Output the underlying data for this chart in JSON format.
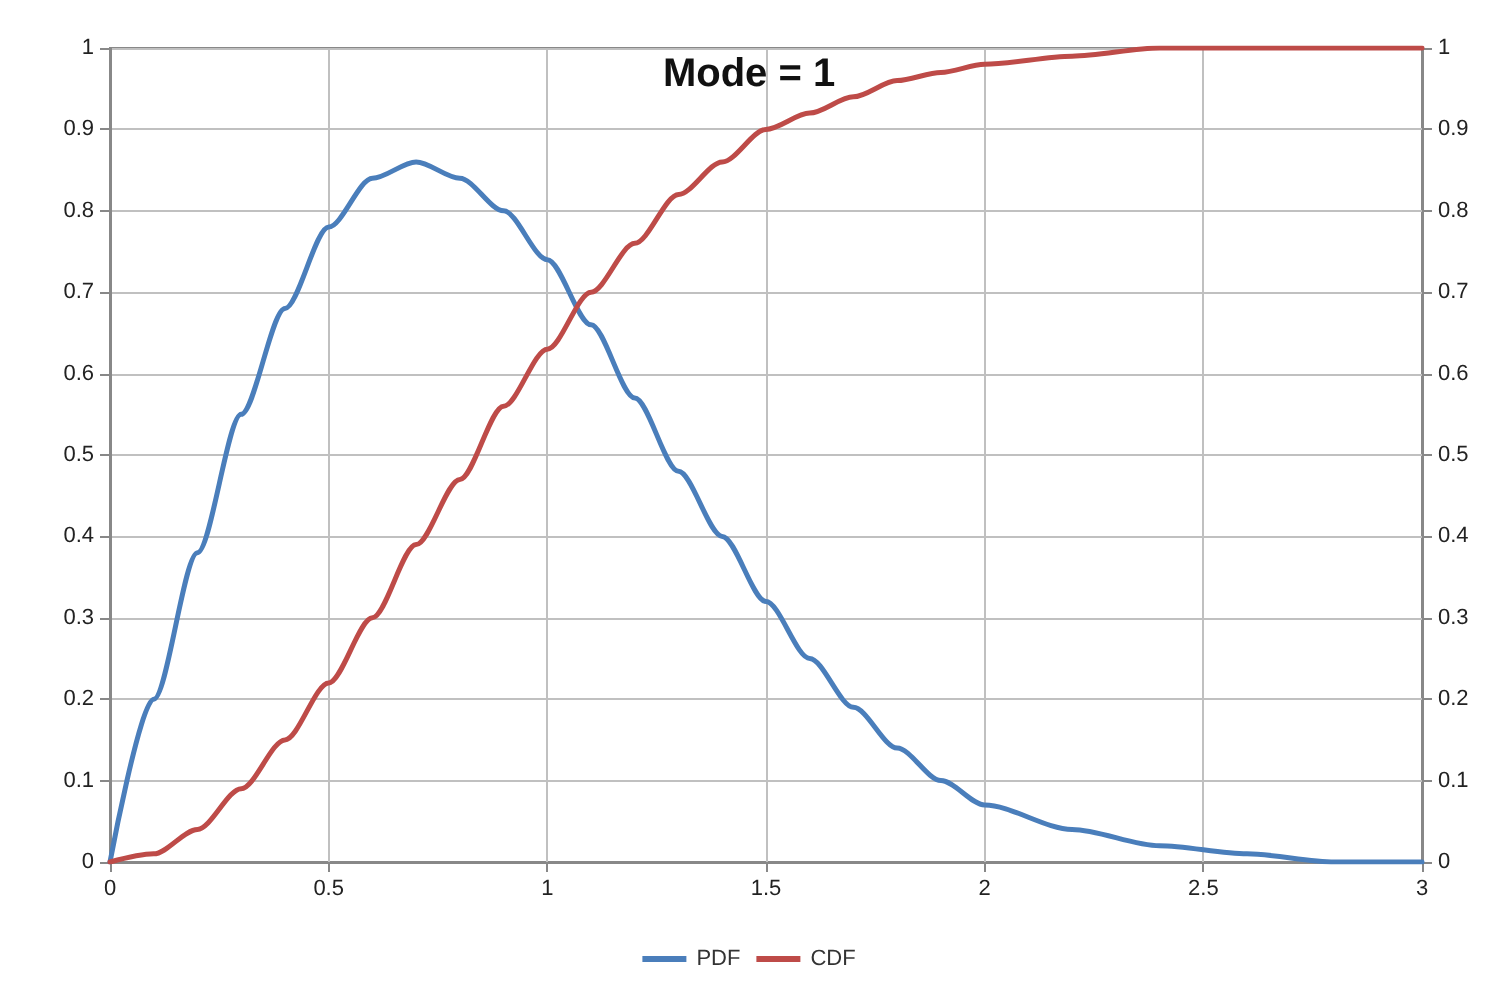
{
  "chart_data": {
    "type": "line",
    "title": "Mode = 1",
    "x": [
      0,
      0.1,
      0.2,
      0.3,
      0.4,
      0.5,
      0.6,
      0.7,
      0.8,
      0.9,
      1.0,
      1.1,
      1.2,
      1.3,
      1.4,
      1.5,
      1.6,
      1.7,
      1.8,
      1.9,
      2.0,
      2.2,
      2.4,
      2.6,
      2.8,
      3.0
    ],
    "series": [
      {
        "name": "PDF",
        "color": "#4a7ebb",
        "values": [
          0,
          0.2,
          0.38,
          0.55,
          0.68,
          0.78,
          0.84,
          0.86,
          0.84,
          0.8,
          0.74,
          0.66,
          0.57,
          0.48,
          0.4,
          0.32,
          0.25,
          0.19,
          0.14,
          0.1,
          0.07,
          0.04,
          0.02,
          0.01,
          0,
          0
        ]
      },
      {
        "name": "CDF",
        "color": "#be4b48",
        "values": [
          0,
          0.01,
          0.04,
          0.09,
          0.15,
          0.22,
          0.3,
          0.39,
          0.47,
          0.56,
          0.63,
          0.7,
          0.76,
          0.82,
          0.86,
          0.9,
          0.92,
          0.94,
          0.96,
          0.97,
          0.98,
          0.99,
          1,
          1,
          1,
          1
        ]
      }
    ],
    "xlim": [
      0,
      3
    ],
    "xticks": [
      0,
      0.5,
      1,
      1.5,
      2,
      2.5,
      3
    ],
    "ylim": [
      0,
      1
    ],
    "yticks": [
      0,
      0.1,
      0.2,
      0.3,
      0.4,
      0.5,
      0.6,
      0.7,
      0.8,
      0.9,
      1
    ],
    "y2lim": [
      0,
      1
    ],
    "y2ticks": [
      0,
      0.1,
      0.2,
      0.3,
      0.4,
      0.5,
      0.6,
      0.7,
      0.8,
      0.9,
      1
    ],
    "grid": true,
    "legend": "bottom",
    "marker": "none",
    "line_style": "solid"
  }
}
